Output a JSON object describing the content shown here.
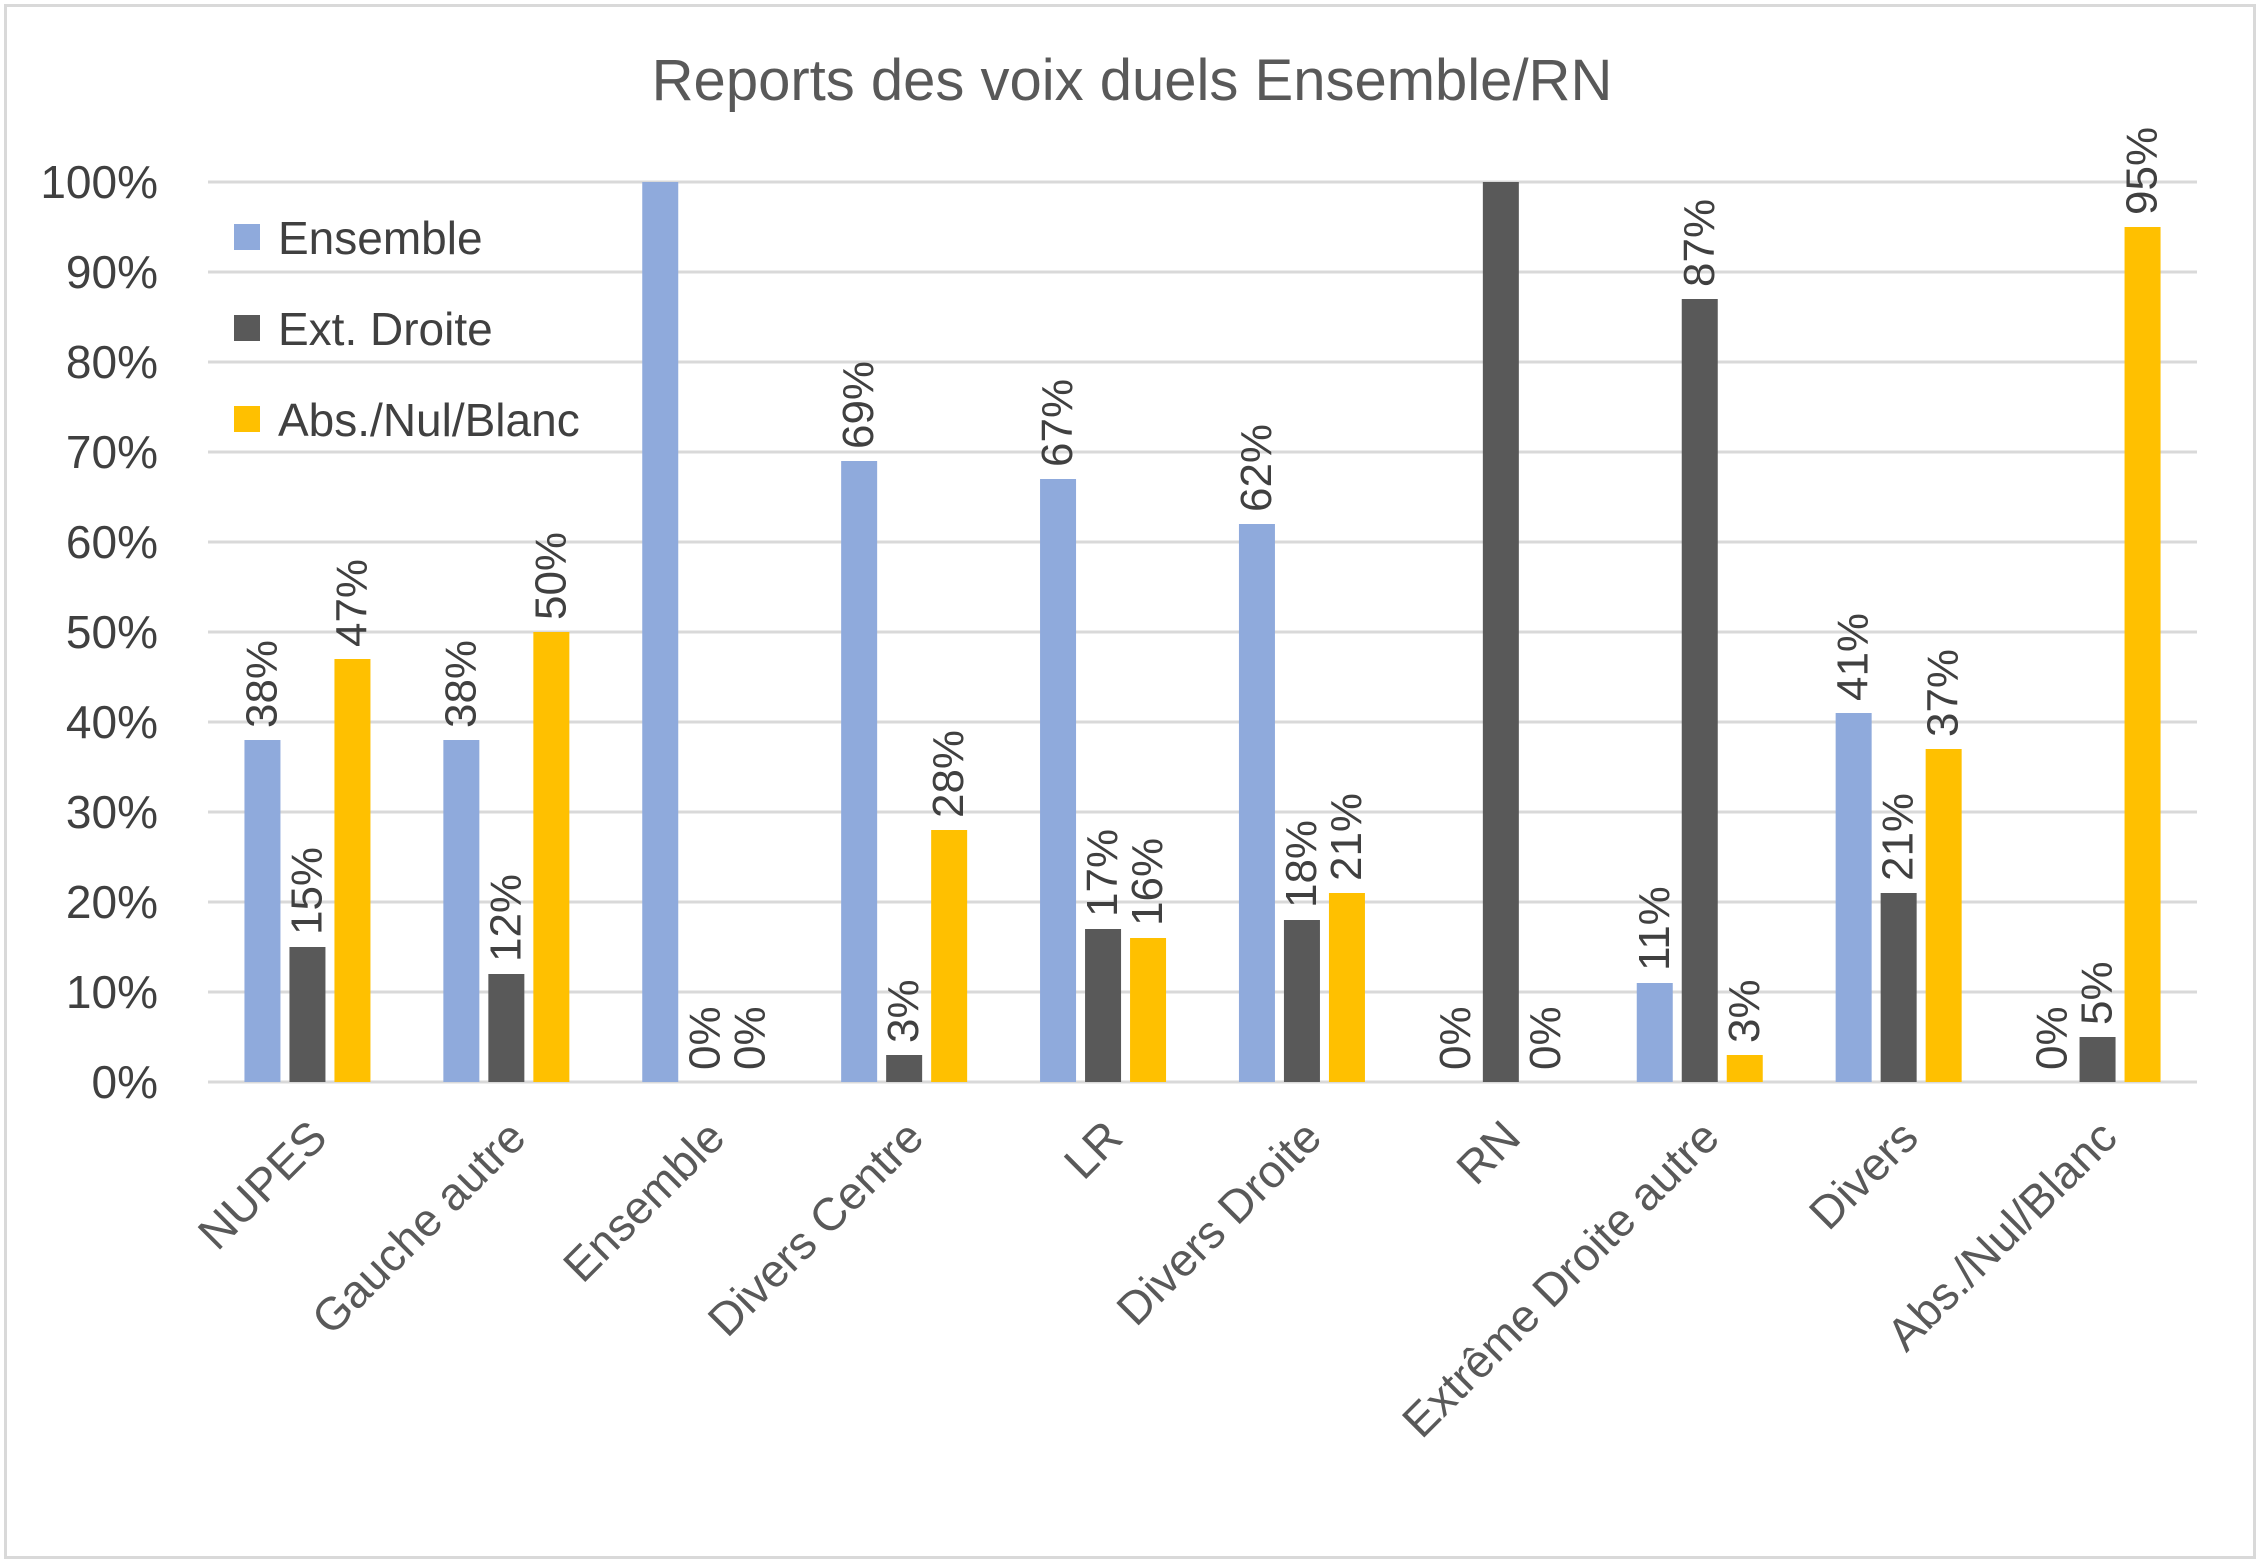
{
  "chart_data": {
    "type": "bar",
    "title": "Reports des voix duels Ensemble/RN",
    "xlabel": "",
    "ylabel": "",
    "ylim": [
      0,
      100
    ],
    "yticks": [
      "0%",
      "10%",
      "20%",
      "30%",
      "40%",
      "50%",
      "60%",
      "70%",
      "80%",
      "90%",
      "100%"
    ],
    "grid": true,
    "legend_position": "top-left",
    "categories": [
      "NUPES",
      "Gauche autre",
      "Ensemble",
      "Divers Centre",
      "LR",
      "Divers Droite",
      "RN",
      "Extrême Droite autre",
      "Divers",
      "Abs./Nul/Blanc"
    ],
    "series": [
      {
        "name": "Ensemble",
        "color": "#8faadc",
        "values": [
          38,
          38,
          100,
          69,
          67,
          62,
          0,
          11,
          41,
          0
        ],
        "labels": [
          "38%",
          "38%",
          "",
          "69%",
          "67%",
          "62%",
          "0%",
          "11%",
          "41%",
          "0%"
        ]
      },
      {
        "name": "Ext. Droite",
        "color": "#595959",
        "values": [
          15,
          12,
          0,
          3,
          17,
          18,
          100,
          87,
          21,
          5
        ],
        "labels": [
          "15%",
          "12%",
          "0%",
          "3%",
          "17%",
          "18%",
          "",
          "87%",
          "21%",
          "5%"
        ]
      },
      {
        "name": "Abs./Nul/Blanc",
        "color": "#ffc000",
        "values": [
          47,
          50,
          0,
          28,
          16,
          21,
          0,
          3,
          37,
          95
        ],
        "labels": [
          "47%",
          "50%",
          "0%",
          "28%",
          "16%",
          "21%",
          "0%",
          "3%",
          "37%",
          "95%"
        ]
      }
    ]
  }
}
